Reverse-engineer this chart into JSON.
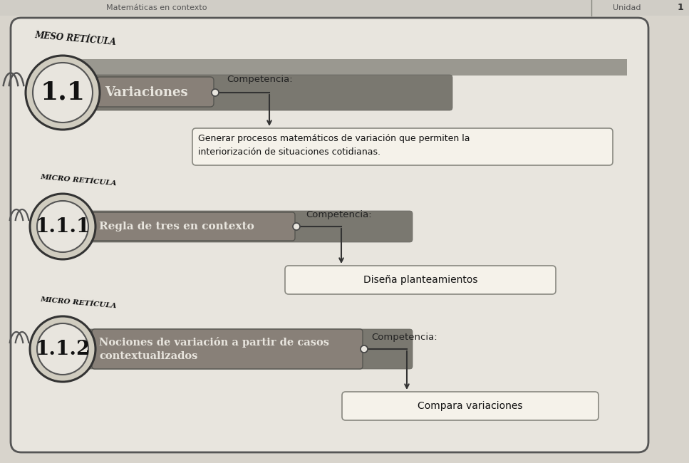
{
  "bg_color": "#d8d4cc",
  "outer_bg": "#e8e5de",
  "outer_border_color": "#555555",
  "meso_label": "MESO RETÍCULA",
  "meso_number": "1.1",
  "meso_topic": "Variaciones",
  "meso_competencia_label": "Competencia:",
  "meso_competencia_text": "Generar procesos matemáticos de variación que permiten la\ninteriorización de situaciones cotidianas.",
  "micro1_label": "MICRO RETÍCULA",
  "micro1_number": "1.1.1",
  "micro1_topic": "Regla de tres en contexto",
  "micro1_competencia_label": "Competencia:",
  "micro1_competencia_text": "Diseña planteamientos",
  "micro2_label": "MICRO RETÍCULA",
  "micro2_number": "1.1.2",
  "micro2_topic": "Nociones de variación a partir de casos\ncontextualizados",
  "micro2_competencia_label": "Competencia:",
  "micro2_competencia_text": "Compara variaciones",
  "dark_band_color": "#aaa89e",
  "dark_box_color": "#8a8880",
  "light_box_color": "#f0ede6",
  "circle_outer_color": "#c8c4b8",
  "circle_inner_color": "#e8e5de",
  "text_dark": "#111111",
  "text_white": "#eeeeee",
  "arrow_color": "#333333",
  "header_bg": "#c8c5be",
  "header_text": "#555555"
}
